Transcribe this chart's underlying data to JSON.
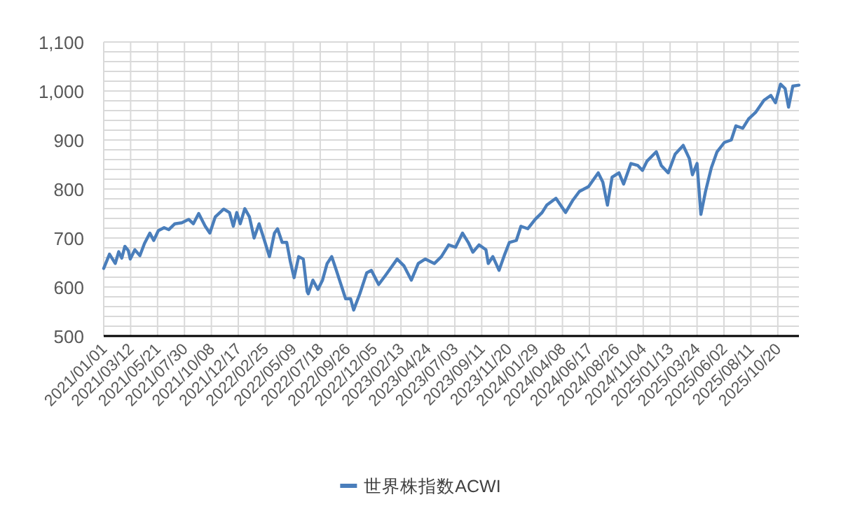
{
  "chart_data": {
    "type": "line",
    "x": [
      "2021-01-01",
      "2021-01-16",
      "2021-01-31",
      "2021-02-09",
      "2021-02-17",
      "2021-02-25",
      "2021-03-06",
      "2021-03-11",
      "2021-03-23",
      "2021-04-05",
      "2021-04-17",
      "2021-05-01",
      "2021-05-11",
      "2021-05-23",
      "2021-06-07",
      "2021-06-19",
      "2021-07-05",
      "2021-07-23",
      "2021-08-10",
      "2021-08-22",
      "2021-09-05",
      "2021-09-22",
      "2021-10-04",
      "2021-10-18",
      "2021-11-09",
      "2021-11-24",
      "2021-12-04",
      "2021-12-13",
      "2021-12-22",
      "2022-01-03",
      "2022-01-15",
      "2022-01-27",
      "2022-02-09",
      "2022-02-21",
      "2022-03-08",
      "2022-03-21",
      "2022-03-29",
      "2022-04-10",
      "2022-04-22",
      "2022-05-01",
      "2022-05-11",
      "2022-05-23",
      "2022-06-04",
      "2022-06-14",
      "2022-06-17",
      "2022-06-29",
      "2022-07-12",
      "2022-07-24",
      "2022-08-05",
      "2022-08-17",
      "2022-08-29",
      "2022-09-10",
      "2022-09-22",
      "2022-10-05",
      "2022-10-13",
      "2022-10-29",
      "2022-11-16",
      "2022-11-28",
      "2022-12-17",
      "2023-01-04",
      "2023-02-03",
      "2023-02-21",
      "2023-03-12",
      "2023-03-30",
      "2023-04-17",
      "2023-05-11",
      "2023-05-29",
      "2023-06-17",
      "2023-07-05",
      "2023-07-23",
      "2023-08-07",
      "2023-08-19",
      "2023-09-04",
      "2023-09-22",
      "2023-09-28",
      "2023-10-10",
      "2023-10-26",
      "2023-11-10",
      "2023-11-22",
      "2023-12-10",
      "2023-12-22",
      "2024-01-09",
      "2024-01-28",
      "2024-02-15",
      "2024-02-27",
      "2024-03-22",
      "2024-04-16",
      "2024-05-04",
      "2024-05-22",
      "2024-06-15",
      "2024-07-10",
      "2024-07-22",
      "2024-08-03",
      "2024-08-15",
      "2024-09-02",
      "2024-09-14",
      "2024-10-03",
      "2024-10-21",
      "2024-11-02",
      "2024-11-14",
      "2024-12-08",
      "2024-12-21",
      "2025-01-08",
      "2025-01-26",
      "2025-02-16",
      "2025-03-04",
      "2025-03-12",
      "2025-03-24",
      "2025-04-03",
      "2025-04-15",
      "2025-04-30",
      "2025-05-15",
      "2025-06-03",
      "2025-06-21",
      "2025-07-03",
      "2025-07-21",
      "2025-08-05",
      "2025-08-24",
      "2025-09-14",
      "2025-10-02",
      "2025-10-14",
      "2025-10-27",
      "2025-11-08",
      "2025-11-17",
      "2025-11-28",
      "2025-12-14"
    ],
    "series": [
      {
        "name": "世界株指数ACWI",
        "color": "#4a7ebb",
        "values": [
          638,
          667,
          648,
          672,
          659,
          683,
          674,
          657,
          676,
          664,
          689,
          710,
          695,
          715,
          721,
          717,
          729,
          731,
          738,
          729,
          750,
          724,
          710,
          743,
          759,
          752,
          724,
          752,
          729,
          760,
          743,
          700,
          729,
          700,
          662,
          710,
          719,
          691,
          691,
          653,
          619,
          662,
          657,
          591,
          586,
          614,
          595,
          614,
          648,
          662,
          634,
          605,
          576,
          576,
          553,
          586,
          629,
          634,
          605,
          624,
          657,
          643,
          614,
          648,
          657,
          648,
          662,
          686,
          681,
          710,
          691,
          671,
          686,
          676,
          648,
          662,
          634,
          667,
          691,
          695,
          724,
          719,
          738,
          752,
          767,
          781,
          752,
          776,
          795,
          805,
          833,
          814,
          767,
          824,
          833,
          810,
          852,
          848,
          838,
          857,
          876,
          848,
          833,
          871,
          889,
          862,
          829,
          852,
          748,
          795,
          843,
          876,
          895,
          900,
          929,
          924,
          943,
          957,
          981,
          991,
          976,
          1014,
          1005,
          967,
          1010,
          1012
        ]
      }
    ],
    "xlim": [
      "2021-01-01",
      "2025-12-14"
    ],
    "xticks": [
      {
        "value": "2021-01-01",
        "label": "2021/01/01"
      },
      {
        "value": "2021-03-12",
        "label": "2021/03/12"
      },
      {
        "value": "2021-05-21",
        "label": "2021/05/21"
      },
      {
        "value": "2021-07-30",
        "label": "2021/07/30"
      },
      {
        "value": "2021-10-08",
        "label": "2021/10/08"
      },
      {
        "value": "2021-12-17",
        "label": "2021/12/17"
      },
      {
        "value": "2022-02-25",
        "label": "2022/02/25"
      },
      {
        "value": "2022-05-09",
        "label": "2022/05/09"
      },
      {
        "value": "2022-07-18",
        "label": "2022/07/18"
      },
      {
        "value": "2022-09-26",
        "label": "2022/09/26"
      },
      {
        "value": "2022-12-05",
        "label": "2022/12/05"
      },
      {
        "value": "2023-02-13",
        "label": "2023/02/13"
      },
      {
        "value": "2023-04-24",
        "label": "2023/04/24"
      },
      {
        "value": "2023-07-03",
        "label": "2023/07/03"
      },
      {
        "value": "2023-09-11",
        "label": "2023/09/11"
      },
      {
        "value": "2023-11-20",
        "label": "2023/11/20"
      },
      {
        "value": "2024-01-29",
        "label": "2024/01/29"
      },
      {
        "value": "2024-04-08",
        "label": "2024/04/08"
      },
      {
        "value": "2024-06-17",
        "label": "2024/06/17"
      },
      {
        "value": "2024-08-26",
        "label": "2024/08/26"
      },
      {
        "value": "2024-11-04",
        "label": "2024/11/04"
      },
      {
        "value": "2025-01-13",
        "label": "2025/01/13"
      },
      {
        "value": "2025-03-24",
        "label": "2025/03/24"
      },
      {
        "value": "2025-06-02",
        "label": "2025/06/02"
      },
      {
        "value": "2025-08-11",
        "label": "2025/08/11"
      },
      {
        "value": "2025-10-20",
        "label": "2025/10/20"
      }
    ],
    "ylim": [
      500,
      1100
    ],
    "yticks": [
      500,
      {
        "value": 520,
        "label": null
      },
      {
        "value": 540,
        "label": null
      },
      {
        "value": 560,
        "label": null
      },
      {
        "value": 580,
        "label": null
      },
      600,
      {
        "value": 620,
        "label": null
      },
      {
        "value": 640,
        "label": null
      },
      {
        "value": 660,
        "label": null
      },
      {
        "value": 680,
        "label": null
      },
      700,
      {
        "value": 720,
        "label": null
      },
      {
        "value": 740,
        "label": null
      },
      {
        "value": 760,
        "label": null
      },
      {
        "value": 780,
        "label": null
      },
      800,
      {
        "value": 820,
        "label": null
      },
      {
        "value": 840,
        "label": null
      },
      {
        "value": 860,
        "label": null
      },
      {
        "value": 880,
        "label": null
      },
      900,
      {
        "value": 920,
        "label": null
      },
      {
        "value": 940,
        "label": null
      },
      {
        "value": 960,
        "label": null
      },
      {
        "value": 980,
        "label": null
      },
      {
        "value": 1000,
        "label": "1,000"
      },
      {
        "value": 1020,
        "label": null
      },
      {
        "value": 1040,
        "label": null
      },
      {
        "value": 1060,
        "label": null
      },
      {
        "value": 1080,
        "label": null
      },
      {
        "value": 1100,
        "label": "1,100"
      }
    ],
    "grid": true,
    "legend": "bottom",
    "line_style": "solid"
  }
}
